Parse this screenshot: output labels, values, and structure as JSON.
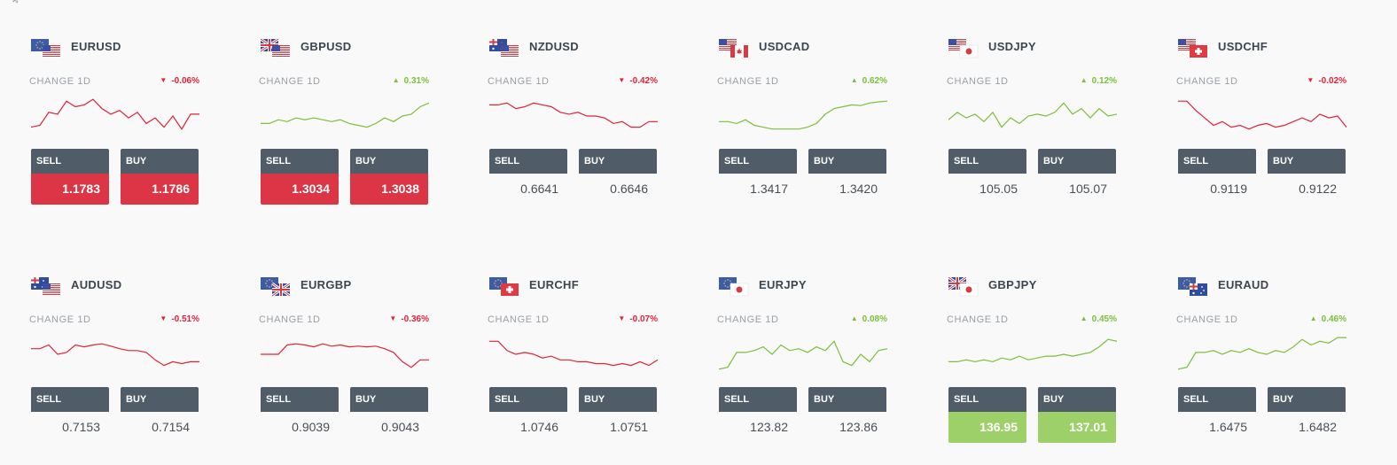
{
  "labels": {
    "change": "CHANGE 1D",
    "sell": "SELL",
    "buy": "BUY"
  },
  "colors": {
    "up": "#7cbf3a",
    "down": "#e0223a",
    "sell_active": "#dc3545",
    "buy_active": "#9ed06a",
    "button_header": "#505c67"
  },
  "pairs": [
    {
      "symbol": "EURUSD",
      "flags": [
        "eu",
        "us"
      ],
      "change": "-0.06%",
      "direction": "down",
      "sell": "1.1783",
      "buy": "1.1786",
      "highlight": "red",
      "trend": [
        0.2,
        0.25,
        0.6,
        0.55,
        0.9,
        0.75,
        0.8,
        0.95,
        0.7,
        0.55,
        0.65,
        0.45,
        0.6,
        0.3,
        0.45,
        0.2,
        0.5,
        0.15,
        0.55,
        0.55
      ]
    },
    {
      "symbol": "GBPUSD",
      "flags": [
        "gb",
        "us"
      ],
      "change": "0.31%",
      "direction": "up",
      "sell": "1.3034",
      "buy": "1.3038",
      "highlight": "red",
      "trend": [
        0.3,
        0.3,
        0.4,
        0.35,
        0.45,
        0.4,
        0.45,
        0.4,
        0.35,
        0.4,
        0.3,
        0.25,
        0.2,
        0.3,
        0.45,
        0.35,
        0.5,
        0.55,
        0.75,
        0.85
      ]
    },
    {
      "symbol": "NZDUSD",
      "flags": [
        "nz",
        "us"
      ],
      "change": "-0.42%",
      "direction": "down",
      "sell": "0.6641",
      "buy": "0.6646",
      "highlight": "none",
      "trend": [
        0.8,
        0.8,
        0.85,
        0.7,
        0.75,
        0.85,
        0.8,
        0.75,
        0.6,
        0.55,
        0.6,
        0.5,
        0.5,
        0.45,
        0.3,
        0.35,
        0.2,
        0.2,
        0.35,
        0.35
      ]
    },
    {
      "symbol": "USDCAD",
      "flags": [
        "us",
        "ca"
      ],
      "change": "0.62%",
      "direction": "up",
      "sell": "1.3417",
      "buy": "1.3420",
      "highlight": "none",
      "trend": [
        0.35,
        0.35,
        0.3,
        0.4,
        0.25,
        0.2,
        0.15,
        0.15,
        0.15,
        0.15,
        0.2,
        0.3,
        0.55,
        0.7,
        0.75,
        0.8,
        0.78,
        0.85,
        0.88,
        0.9
      ]
    },
    {
      "symbol": "USDJPY",
      "flags": [
        "us",
        "jp"
      ],
      "change": "0.12%",
      "direction": "up",
      "sell": "105.05",
      "buy": "105.07",
      "highlight": "none",
      "trend": [
        0.4,
        0.6,
        0.45,
        0.55,
        0.35,
        0.6,
        0.2,
        0.45,
        0.3,
        0.5,
        0.55,
        0.5,
        0.6,
        0.85,
        0.55,
        0.7,
        0.45,
        0.7,
        0.5,
        0.55
      ]
    },
    {
      "symbol": "USDCHF",
      "flags": [
        "us",
        "ch"
      ],
      "change": "-0.02%",
      "direction": "down",
      "sell": "0.9119",
      "buy": "0.9122",
      "highlight": "none",
      "trend": [
        0.9,
        0.9,
        0.65,
        0.45,
        0.25,
        0.35,
        0.2,
        0.25,
        0.15,
        0.25,
        0.3,
        0.2,
        0.25,
        0.35,
        0.45,
        0.35,
        0.55,
        0.45,
        0.5,
        0.2
      ]
    },
    {
      "symbol": "AUDUSD",
      "flags": [
        "au",
        "us"
      ],
      "change": "-0.51%",
      "direction": "down",
      "sell": "0.7153",
      "buy": "0.7154",
      "highlight": "none",
      "trend": [
        0.65,
        0.65,
        0.75,
        0.5,
        0.55,
        0.75,
        0.7,
        0.75,
        0.78,
        0.72,
        0.65,
        0.6,
        0.6,
        0.55,
        0.35,
        0.2,
        0.3,
        0.25,
        0.3,
        0.3
      ]
    },
    {
      "symbol": "EURGBP",
      "flags": [
        "eu",
        "gb"
      ],
      "change": "-0.36%",
      "direction": "down",
      "sell": "0.9039",
      "buy": "0.9043",
      "highlight": "none",
      "trend": [
        0.5,
        0.5,
        0.5,
        0.75,
        0.78,
        0.75,
        0.7,
        0.78,
        0.72,
        0.75,
        0.7,
        0.72,
        0.7,
        0.72,
        0.65,
        0.55,
        0.3,
        0.15,
        0.35,
        0.35
      ]
    },
    {
      "symbol": "EURCHF",
      "flags": [
        "eu",
        "ch"
      ],
      "change": "-0.07%",
      "direction": "down",
      "sell": "1.0746",
      "buy": "1.0751",
      "highlight": "none",
      "trend": [
        0.85,
        0.85,
        0.6,
        0.5,
        0.55,
        0.5,
        0.4,
        0.45,
        0.35,
        0.35,
        0.3,
        0.3,
        0.25,
        0.25,
        0.2,
        0.25,
        0.2,
        0.3,
        0.2,
        0.35
      ]
    },
    {
      "symbol": "EURJPY",
      "flags": [
        "eu",
        "jp"
      ],
      "change": "0.08%",
      "direction": "up",
      "sell": "123.82",
      "buy": "123.86",
      "highlight": "none",
      "trend": [
        0.1,
        0.15,
        0.55,
        0.55,
        0.6,
        0.7,
        0.5,
        0.75,
        0.6,
        0.65,
        0.55,
        0.7,
        0.6,
        0.85,
        0.3,
        0.2,
        0.5,
        0.3,
        0.6,
        0.65
      ]
    },
    {
      "symbol": "GBPJPY",
      "flags": [
        "gb",
        "jp"
      ],
      "change": "0.45%",
      "direction": "up",
      "sell": "136.95",
      "buy": "137.01",
      "highlight": "green",
      "trend": [
        0.3,
        0.3,
        0.35,
        0.3,
        0.35,
        0.3,
        0.4,
        0.35,
        0.45,
        0.35,
        0.4,
        0.45,
        0.45,
        0.5,
        0.45,
        0.5,
        0.55,
        0.7,
        0.9,
        0.85
      ]
    },
    {
      "symbol": "EURAUD",
      "flags": [
        "eu",
        "au"
      ],
      "change": "0.46%",
      "direction": "up",
      "sell": "1.6475",
      "buy": "1.6482",
      "highlight": "none",
      "trend": [
        0.1,
        0.15,
        0.55,
        0.55,
        0.6,
        0.5,
        0.6,
        0.55,
        0.65,
        0.55,
        0.5,
        0.6,
        0.55,
        0.7,
        0.9,
        0.75,
        0.85,
        0.8,
        0.95,
        0.95
      ]
    }
  ]
}
